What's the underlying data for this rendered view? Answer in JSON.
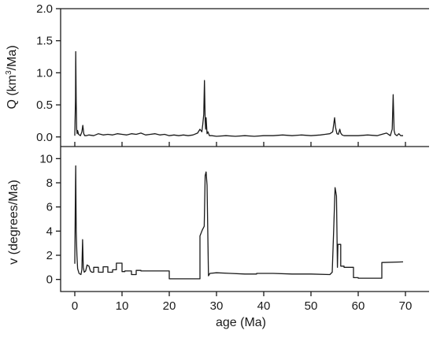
{
  "chart_data": [
    {
      "type": "line",
      "ylabel": "Q (km³/Ma)",
      "ylabel_base": "Q (km",
      "ylabel_sup": "3",
      "ylabel_tail": "/Ma)",
      "xlim": [
        -3,
        75
      ],
      "ylim": [
        -0.15,
        2.0
      ],
      "yticks": [
        0.0,
        0.5,
        1.0,
        1.5,
        2.0
      ],
      "ytick_labels": [
        "0.0",
        "0.5",
        "1.0",
        "1.5",
        "2.0"
      ],
      "series": [
        {
          "x": [
            0,
            0.15,
            0.2,
            0.3,
            0.4,
            0.5,
            0.6,
            0.8,
            1.0,
            1.2,
            1.5,
            1.7,
            1.9,
            2.1,
            2.4,
            3,
            4,
            5,
            6,
            7,
            8,
            9,
            10,
            11,
            12,
            13,
            14,
            15,
            16,
            17,
            18,
            19,
            20,
            21,
            22,
            23,
            24,
            25,
            26,
            26.5,
            26.9,
            27.1,
            27.3,
            27.45,
            27.6,
            27.7,
            27.8,
            28.0,
            28.2,
            28.5,
            29,
            30,
            32,
            34,
            36,
            38,
            40,
            42,
            44,
            46,
            48,
            50,
            52,
            53,
            54,
            54.6,
            55.0,
            55.2,
            55.5,
            55.8,
            56.1,
            56.3,
            56.6,
            57,
            58,
            60,
            62,
            64,
            65,
            66,
            66.8,
            67.2,
            67.4,
            67.6,
            67.8,
            68.2,
            68.6,
            69,
            69.5
          ],
          "y": [
            0.02,
            0.6,
            1.33,
            0.55,
            0.12,
            0.05,
            0.1,
            0.04,
            0.03,
            0.02,
            0.08,
            0.18,
            0.05,
            0.02,
            0.02,
            0.03,
            0.02,
            0.05,
            0.03,
            0.04,
            0.03,
            0.05,
            0.04,
            0.03,
            0.05,
            0.04,
            0.06,
            0.03,
            0.04,
            0.05,
            0.03,
            0.04,
            0.02,
            0.03,
            0.02,
            0.03,
            0.02,
            0.03,
            0.06,
            0.12,
            0.08,
            0.2,
            0.35,
            0.88,
            0.25,
            0.12,
            0.3,
            0.05,
            0.08,
            0.02,
            0.02,
            0.01,
            0.02,
            0.01,
            0.02,
            0.01,
            0.02,
            0.02,
            0.03,
            0.02,
            0.03,
            0.02,
            0.03,
            0.04,
            0.05,
            0.08,
            0.3,
            0.15,
            0.05,
            0.04,
            0.12,
            0.06,
            0.03,
            0.02,
            0.02,
            0.02,
            0.03,
            0.02,
            0.04,
            0.06,
            0.02,
            0.12,
            0.66,
            0.1,
            0.04,
            0.02,
            0.05,
            0.02,
            0.02
          ]
        }
      ]
    },
    {
      "type": "line",
      "xlabel": "age (Ma)",
      "ylabel": "v (degrees/Ma)",
      "xlim": [
        -3,
        75
      ],
      "ylim": [
        -1.0,
        11.0
      ],
      "xticks": [
        0,
        10,
        20,
        30,
        40,
        50,
        60,
        70
      ],
      "xtick_labels": [
        "0",
        "10",
        "20",
        "30",
        "40",
        "50",
        "60",
        "70"
      ],
      "yticks": [
        0,
        2,
        4,
        6,
        8,
        10
      ],
      "ytick_labels": [
        "0",
        "2",
        "4",
        "6",
        "8",
        "10"
      ],
      "series": [
        {
          "x": [
            0,
            0.1,
            0.2,
            0.3,
            0.45,
            0.6,
            0.9,
            1.3,
            1.5,
            1.65,
            1.8,
            2.0,
            2.3,
            2.6,
            3.0,
            3.3,
            3.6,
            4.0,
            4.0,
            5.0,
            5.0,
            6.0,
            6.0,
            7.0,
            7.0,
            8.0,
            8.0,
            8.8,
            8.8,
            10.0,
            10.0,
            10.6,
            10.6,
            12.0,
            12.0,
            13.0,
            13.0,
            14.0,
            14.0,
            20.0,
            20.0,
            26.5,
            26.5,
            27.0,
            27.4,
            27.6,
            27.8,
            28.0,
            28.3,
            28.6,
            30,
            33,
            36,
            38.5,
            38.5,
            42,
            46,
            50,
            54.0,
            54.5,
            54.8,
            55.1,
            55.4,
            55.6,
            55.7,
            56.3,
            56.3,
            57.0,
            57.0,
            59.0,
            59.0,
            60.0,
            60.0,
            65.0,
            65.0,
            69.5
          ],
          "y": [
            1.3,
            5.8,
            9.4,
            4.0,
            2.0,
            0.9,
            0.5,
            0.4,
            0.8,
            3.3,
            1.0,
            0.6,
            0.7,
            1.2,
            1.1,
            0.7,
            0.6,
            0.6,
            1.0,
            1.0,
            0.6,
            0.6,
            1.05,
            1.05,
            0.6,
            0.6,
            0.8,
            0.8,
            1.35,
            1.35,
            0.65,
            0.65,
            0.7,
            0.7,
            0.4,
            0.4,
            0.75,
            0.75,
            0.7,
            0.7,
            0.05,
            0.05,
            3.6,
            4.1,
            4.4,
            8.6,
            8.9,
            7.8,
            0.3,
            0.5,
            0.55,
            0.5,
            0.45,
            0.45,
            0.5,
            0.5,
            0.45,
            0.45,
            0.4,
            0.6,
            4.0,
            7.6,
            6.9,
            1.0,
            2.9,
            2.9,
            1.1,
            1.1,
            1.0,
            1.0,
            0.15,
            0.15,
            0.1,
            0.1,
            1.4,
            1.45
          ]
        }
      ]
    }
  ]
}
